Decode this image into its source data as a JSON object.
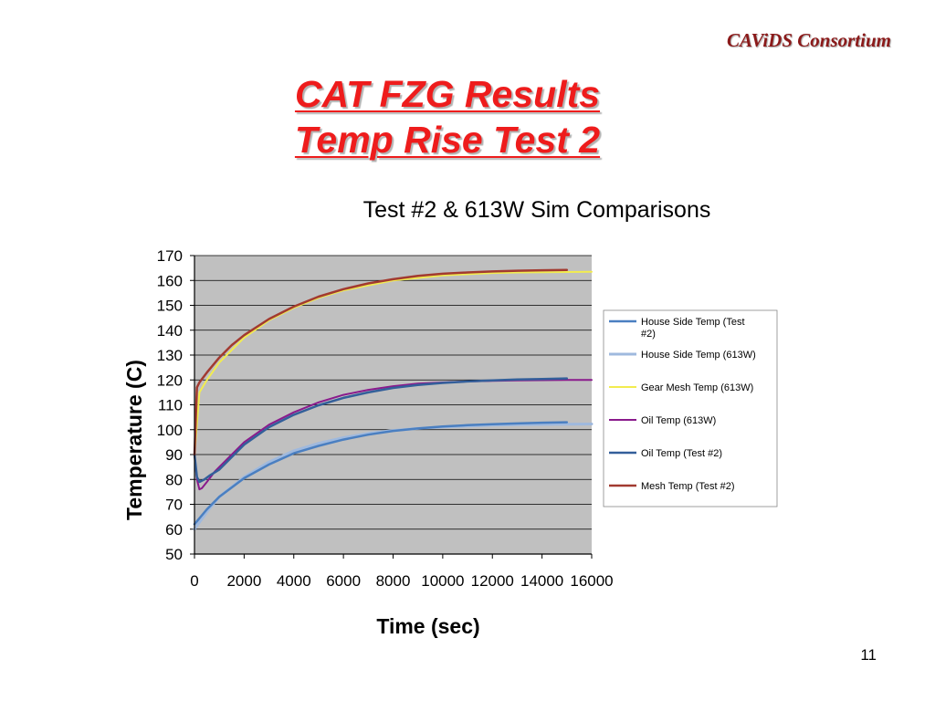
{
  "header": {
    "consortium": "CAViDS Consortium"
  },
  "slide": {
    "title_line1": "CAT FZG Results",
    "title_line2": "Temp Rise Test 2",
    "page_number": "11"
  },
  "chart_data": {
    "type": "line",
    "title": "Test #2 & 613W Sim Comparisons",
    "xlabel": "Time (sec)",
    "ylabel": "Temperature (C)",
    "xlim": [
      0,
      16000
    ],
    "ylim": [
      50,
      170
    ],
    "x_ticks": [
      "0",
      "2000",
      "4000",
      "6000",
      "8000",
      "10000",
      "12000",
      "14000",
      "16000"
    ],
    "y_ticks": [
      "50",
      "60",
      "70",
      "80",
      "90",
      "100",
      "110",
      "120",
      "130",
      "140",
      "150",
      "160",
      "170"
    ],
    "grid": true,
    "plot_background": "#c0c0c0",
    "legend_position": "right",
    "series": [
      {
        "name": "House Side Temp (Test #2)",
        "color": "#4a7fc1",
        "width": 2.5,
        "x": [
          0,
          500,
          1000,
          2000,
          3000,
          4000,
          5000,
          6000,
          7000,
          8000,
          9000,
          10000,
          11000,
          12000,
          13000,
          14000,
          15000
        ],
        "y": [
          62,
          68,
          73,
          80.5,
          86,
          90.5,
          93.5,
          96,
          98,
          99.5,
          100.5,
          101.3,
          101.8,
          102.2,
          102.5,
          102.8,
          103
        ]
      },
      {
        "name": "House Side Temp (613W)",
        "color": "#9fb9de",
        "width": 3,
        "x": [
          0,
          500,
          1000,
          2000,
          3000,
          4000,
          5000,
          6000,
          7000,
          8000,
          9000,
          10000,
          11000,
          12000,
          13000,
          14000,
          15000,
          16000
        ],
        "y": [
          60,
          67,
          73,
          81,
          87,
          91.5,
          94.5,
          96.8,
          98.5,
          99.7,
          100.5,
          101.1,
          101.5,
          101.8,
          102,
          102.1,
          102.2,
          102.3
        ]
      },
      {
        "name": "Gear Mesh Temp (613W)",
        "color": "#f2ec4f",
        "width": 2,
        "x": [
          0,
          200,
          500,
          1000,
          1500,
          2000,
          3000,
          4000,
          5000,
          6000,
          7000,
          8000,
          9000,
          10000,
          11000,
          12000,
          13000,
          14000,
          15000,
          16000
        ],
        "y": [
          90,
          115,
          120,
          127,
          132,
          137,
          144,
          149,
          153,
          156,
          158,
          160,
          161,
          162,
          162.5,
          163,
          163.2,
          163.3,
          163.4,
          163.5
        ]
      },
      {
        "name": "Oil Temp (613W)",
        "color": "#8a1a8c",
        "width": 2,
        "x": [
          0,
          100,
          200,
          300,
          500,
          800,
          1000,
          1500,
          2000,
          3000,
          4000,
          5000,
          6000,
          7000,
          8000,
          9000,
          10000,
          11000,
          12000,
          13000,
          14000,
          15000,
          16000
        ],
        "y": [
          90,
          80,
          76,
          76.5,
          79,
          83,
          85,
          90,
          95,
          102,
          107,
          111,
          114,
          116,
          117.5,
          118.5,
          119,
          119.4,
          119.6,
          119.8,
          119.9,
          120,
          120
        ]
      },
      {
        "name": "Oil Temp (Test #2)",
        "color": "#335f9a",
        "width": 2.5,
        "x": [
          0,
          100,
          200,
          400,
          600,
          1000,
          1500,
          2000,
          3000,
          4000,
          5000,
          6000,
          7000,
          8000,
          9000,
          10000,
          11000,
          12000,
          13000,
          14000,
          15000
        ],
        "y": [
          90,
          81,
          79,
          80,
          81.5,
          84,
          89,
          94,
          101,
          106,
          109.8,
          112.8,
          115,
          116.8,
          118,
          118.8,
          119.4,
          119.8,
          120.2,
          120.4,
          120.6
        ]
      },
      {
        "name": "Mesh Temp (Test #2)",
        "color": "#a23a30",
        "width": 2.5,
        "x": [
          0,
          100,
          200,
          500,
          1000,
          1500,
          2000,
          3000,
          4000,
          5000,
          6000,
          7000,
          8000,
          9000,
          10000,
          11000,
          12000,
          13000,
          14000,
          15000
        ],
        "y": [
          90,
          117,
          119,
          123,
          129,
          134,
          138,
          144.5,
          149.5,
          153.5,
          156.5,
          158.8,
          160.5,
          161.8,
          162.7,
          163.2,
          163.6,
          163.9,
          164.1,
          164.2
        ]
      }
    ]
  }
}
